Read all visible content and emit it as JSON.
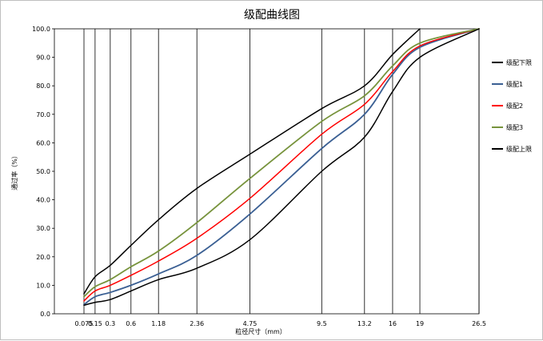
{
  "chart_data": {
    "type": "line",
    "title": "级配曲线图",
    "xlabel": "粒径尺寸（mm）",
    "ylabel": "通过率（%）",
    "x_categories": [
      "0.075",
      "0.15",
      "0.3",
      "0.6",
      "1.18",
      "2.36",
      "4.75",
      "9.5",
      "13.2",
      "16",
      "19",
      "26.5"
    ],
    "x": [
      0.075,
      0.15,
      0.3,
      0.6,
      1.18,
      2.36,
      4.75,
      9.5,
      13.2,
      16,
      19,
      26.5
    ],
    "ylim": [
      0,
      100
    ],
    "y_ticks": [
      "0.0",
      "10.0",
      "20.0",
      "30.0",
      "40.0",
      "50.0",
      "60.0",
      "70.0",
      "80.0",
      "90.0",
      "100.0"
    ],
    "grid": "vertical lines at each sieve size",
    "legend_position": "right",
    "series": [
      {
        "name": "级配下限",
        "color": "#000000",
        "values": [
          7,
          13,
          17,
          24,
          33,
          44,
          56,
          72,
          80,
          91,
          100,
          null
        ]
      },
      {
        "name": "级配1",
        "color": "#3A5F93",
        "values": [
          3.2,
          6,
          7.5,
          10,
          14,
          20.5,
          35,
          58,
          70,
          84,
          93.5,
          100
        ]
      },
      {
        "name": "级配2",
        "color": "#FF0000",
        "values": [
          4.5,
          8,
          10,
          13.5,
          18.5,
          26.5,
          40.5,
          63,
          73.5,
          85,
          94,
          100
        ]
      },
      {
        "name": "级配3",
        "color": "#77933C",
        "values": [
          6,
          9.5,
          12,
          16.5,
          22,
          32,
          47.5,
          67.5,
          76.5,
          87,
          95,
          100
        ]
      },
      {
        "name": "级配上限",
        "color": "#000000",
        "values": [
          3,
          4,
          5,
          8,
          12,
          16,
          26,
          50,
          62,
          78,
          90,
          100
        ]
      }
    ]
  }
}
